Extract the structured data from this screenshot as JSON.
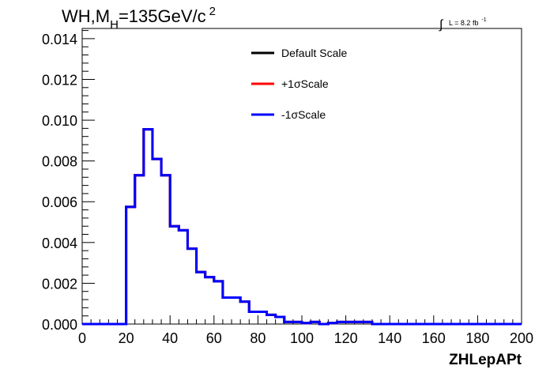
{
  "header": {
    "title_main": "WH,M",
    "title_sub": "H",
    "title_rest": "=135GeV/c",
    "title_sup": "2",
    "lumi_prefix": "∫",
    "lumi_text": "L = 8.2 fb",
    "lumi_sup": "-1"
  },
  "legend": {
    "items": [
      {
        "label": "Default Scale",
        "color": "#000000"
      },
      {
        "label": "+1σScale",
        "color": "#ff0000"
      },
      {
        "label": "-1σScale",
        "color": "#0000ff"
      }
    ]
  },
  "chart_data": {
    "type": "line",
    "style": "step-histogram",
    "xlabel": "ZHLepAPt",
    "ylabel": "",
    "xlim": [
      0,
      200
    ],
    "ylim": [
      0,
      0.0145
    ],
    "x_ticks": [
      "0",
      "20",
      "40",
      "60",
      "80",
      "100",
      "120",
      "140",
      "160",
      "180",
      "200"
    ],
    "y_ticks": [
      "0.000",
      "0.002",
      "0.004",
      "0.006",
      "0.008",
      "0.010",
      "0.012",
      "0.014"
    ],
    "x_tick_values": [
      0,
      20,
      40,
      60,
      80,
      100,
      120,
      140,
      160,
      180,
      200
    ],
    "y_tick_values": [
      0,
      0.002,
      0.004,
      0.006,
      0.008,
      0.01,
      0.012,
      0.014
    ],
    "bin_edges": [
      0,
      4,
      8,
      12,
      16,
      20,
      24,
      28,
      32,
      36,
      40,
      44,
      48,
      52,
      56,
      60,
      64,
      68,
      72,
      76,
      80,
      84,
      88,
      92,
      96,
      100,
      104,
      108,
      112,
      116,
      120,
      124,
      128,
      132,
      136,
      140,
      144,
      148,
      152,
      156,
      160,
      164,
      168,
      172,
      176,
      180,
      184,
      188,
      192,
      196,
      200
    ],
    "series": [
      {
        "name": "Default Scale",
        "color": "#000000",
        "values": [
          0,
          0,
          0,
          0,
          0,
          0.00575,
          0.0073,
          0.00955,
          0.0081,
          0.0073,
          0.0048,
          0.0046,
          0.0037,
          0.00255,
          0.0023,
          0.0021,
          0.0013,
          0.0013,
          0.0011,
          0.0006,
          0.0006,
          0.00045,
          0.00035,
          0.0001,
          0.0001,
          5e-05,
          0.0001,
          0,
          5e-05,
          0.0001,
          0.0001,
          0.0001,
          0.0001,
          0,
          0,
          0,
          0,
          0,
          0,
          0,
          0,
          0,
          0,
          0,
          0,
          0,
          0,
          0,
          0,
          0
        ]
      },
      {
        "name": "+1σScale",
        "color": "#ff0000",
        "values": [
          0,
          0,
          0,
          0,
          0,
          0.00575,
          0.0073,
          0.00955,
          0.0081,
          0.0073,
          0.0048,
          0.0046,
          0.0037,
          0.00255,
          0.0023,
          0.0021,
          0.0013,
          0.0013,
          0.0011,
          0.0006,
          0.0006,
          0.00045,
          0.00035,
          0.0001,
          0.0001,
          5e-05,
          0.0001,
          0,
          5e-05,
          0.0001,
          0.0001,
          0.0001,
          0.0001,
          0,
          0,
          0,
          0,
          0,
          0,
          0,
          0,
          0,
          0,
          0,
          0,
          0,
          0,
          0,
          0,
          0
        ]
      },
      {
        "name": "-1σScale",
        "color": "#0000ff",
        "values": [
          0,
          0,
          0,
          0,
          0,
          0.00575,
          0.0073,
          0.00955,
          0.0081,
          0.0073,
          0.0048,
          0.0046,
          0.0037,
          0.00255,
          0.0023,
          0.0021,
          0.0013,
          0.0013,
          0.0011,
          0.0006,
          0.0006,
          0.00045,
          0.00035,
          0.0001,
          0.0001,
          5e-05,
          0.0001,
          0,
          5e-05,
          0.0001,
          0.0001,
          0.0001,
          0.0001,
          0,
          0,
          0,
          0,
          0,
          0,
          0,
          0,
          0,
          0,
          0,
          0,
          0,
          0,
          0,
          0,
          0
        ]
      }
    ],
    "grid": false,
    "legend_position": "top-center"
  }
}
